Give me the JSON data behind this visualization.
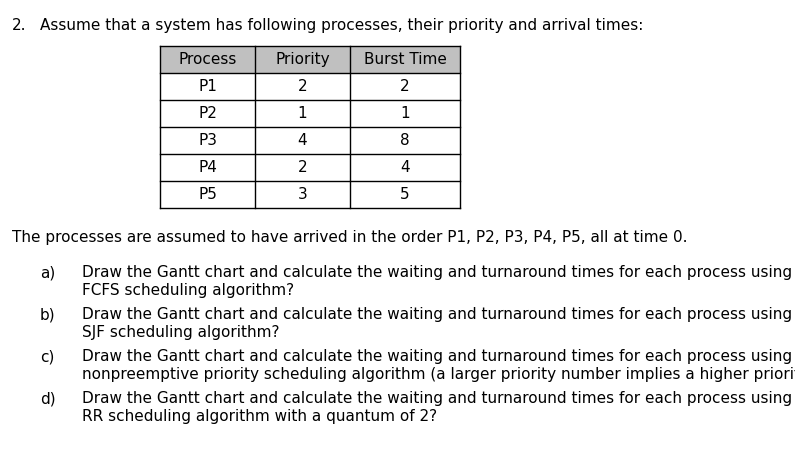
{
  "title_number": "2.",
  "title_text": "Assume that a system has following processes, their priority and arrival times:",
  "table_headers": [
    "Process",
    "Priority",
    "Burst Time"
  ],
  "table_rows": [
    [
      "P1",
      "2",
      "2"
    ],
    [
      "P2",
      "1",
      "1"
    ],
    [
      "P3",
      "4",
      "8"
    ],
    [
      "P4",
      "2",
      "4"
    ],
    [
      "P5",
      "3",
      "5"
    ]
  ],
  "paragraph": "The processes are assumed to have arrived in the order P1, P2, P3, P4, P5, all at time 0.",
  "questions": [
    {
      "label": "a)",
      "line1": "Draw the Gantt chart and calculate the waiting and turnaround times for each process using a",
      "line2": "FCFS scheduling algorithm?"
    },
    {
      "label": "b)",
      "line1": "Draw the Gantt chart and calculate the waiting and turnaround times for each process using a",
      "line2": "SJF scheduling algorithm?"
    },
    {
      "label": "c)",
      "line1": "Draw the Gantt chart and calculate the waiting and turnaround times for each process using a",
      "line2": "nonpreemptive priority scheduling algorithm (a larger priority number implies a higher priority?"
    },
    {
      "label": "d)",
      "line1": "Draw the Gantt chart and calculate the waiting and turnaround times for each process using a",
      "line2": "RR scheduling algorithm with a quantum of 2?"
    }
  ],
  "bg_color": "#ffffff",
  "text_color": "#000000",
  "header_bg_color": "#c0c0c0",
  "table_border_color": "#000000",
  "font_size": 11.0
}
